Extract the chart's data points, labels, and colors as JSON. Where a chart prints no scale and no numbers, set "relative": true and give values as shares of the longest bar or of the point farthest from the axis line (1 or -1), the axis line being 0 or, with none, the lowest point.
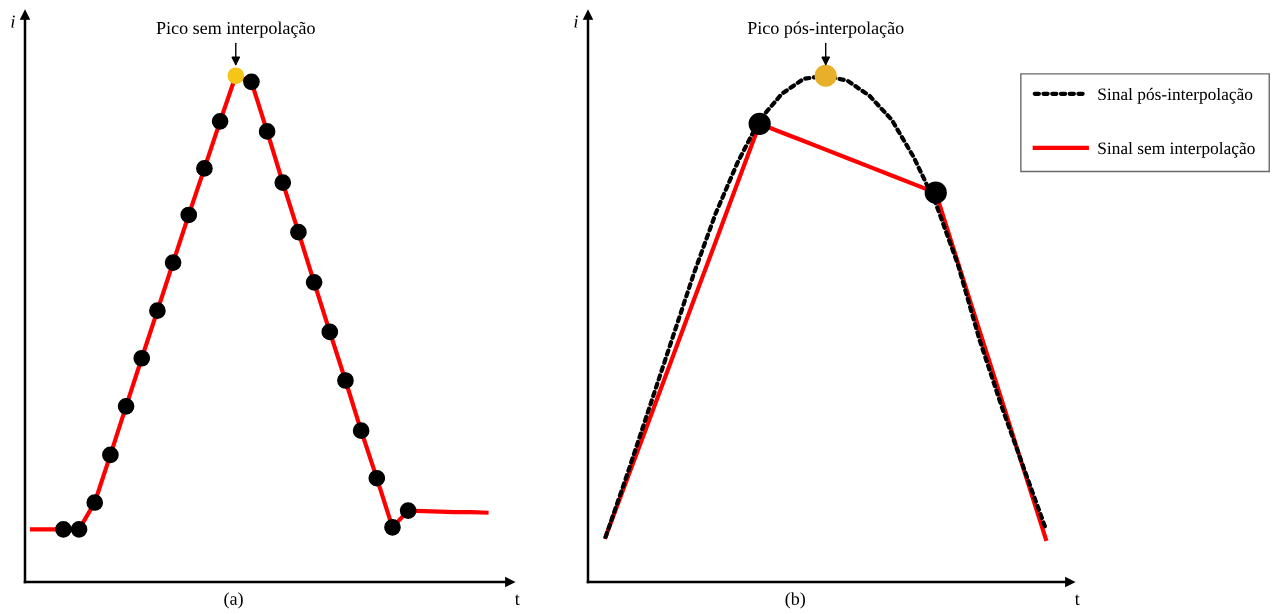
{
  "chart_data": [
    {
      "type": "line",
      "relative": true,
      "xlabel": "t",
      "ylabel": "i",
      "categories": [
        null,
        null,
        null,
        null,
        null,
        null,
        null,
        null,
        null,
        null,
        null,
        null,
        null,
        null,
        null,
        null,
        null,
        null,
        null,
        null,
        null,
        null,
        null,
        null,
        null,
        null,
        null,
        null,
        null,
        null
      ],
      "legend": false,
      "annotations": [
        {
          "text": "Pico sem interpolação",
          "y": 1.0
        },
        "(a)"
      ],
      "series": [
        {
          "color": "#ff0000",
          "line_style": "solid",
          "marker": "circle",
          "values": [
            0.104,
            0.104,
            0.104,
            0.104,
            0.157,
            0.251,
            0.347,
            0.442,
            0.536,
            0.631,
            0.725,
            0.817,
            0.91,
            1.0,
            0.988,
            0.89,
            0.789,
            0.691,
            0.592,
            0.494,
            0.398,
            0.299,
            0.205,
            0.108,
            0.141,
            0.14,
            0.139,
            0.138,
            0.138,
            0.137
          ],
          "colors": [
            null,
            null,
            "#000000",
            "#000000",
            "#000000",
            "#000000",
            "#000000",
            "#000000",
            "#000000",
            "#000000",
            "#000000",
            "#000000",
            "#000000",
            "#f5c518",
            "#000000",
            "#000000",
            "#000000",
            "#000000",
            "#000000",
            "#000000",
            "#000000",
            "#000000",
            "#000000",
            "#000000",
            "#000000",
            null,
            null,
            null,
            null,
            null
          ]
        }
      ]
    },
    {
      "type": "line",
      "relative": true,
      "xlabel": "t",
      "ylabel": "i",
      "categories": [
        null,
        null,
        null,
        null,
        null,
        null,
        null,
        null,
        null,
        null,
        null,
        null,
        null,
        null,
        null,
        null,
        null,
        null,
        null,
        null,
        null
      ],
      "legend": "right",
      "annotations": [
        {
          "text": "Pico pós-interpolação",
          "y": 1.0
        },
        "(b)"
      ],
      "series": [
        {
          "name": "Sinal pós-interpolação",
          "color": "#000000",
          "line_style": "dotted",
          "values": [
            0.089,
            0.215,
            0.346,
            0.477,
            0.608,
            0.728,
            0.829,
            0.913,
            0.964,
            0.994,
            1.0,
            0.99,
            0.96,
            0.913,
            0.839,
            0.748,
            0.628,
            0.477,
            0.346,
            0.225,
            0.105
          ],
          "colors": [
            null,
            null,
            null,
            null,
            null,
            null,
            null,
            null,
            null,
            null,
            "#e8b02a",
            null,
            null,
            null,
            null,
            null,
            null,
            null,
            null,
            null,
            null
          ]
        },
        {
          "name": "Sinal sem interpolação",
          "color": "#ff0000",
          "line_style": "solid",
          "values": [
            0.089,
            0.206,
            0.322,
            0.439,
            0.556,
            0.672,
            0.789,
            0.905,
            0.888,
            0.871,
            0.854,
            0.837,
            0.82,
            0.803,
            0.786,
            0.769,
            0.632,
            0.495,
            0.359,
            0.222,
            0.085
          ],
          "colors": [
            null,
            null,
            null,
            null,
            null,
            null,
            null,
            "#000000",
            null,
            null,
            null,
            null,
            null,
            null,
            null,
            "#000000",
            null,
            null,
            null,
            null,
            null
          ]
        }
      ]
    }
  ]
}
